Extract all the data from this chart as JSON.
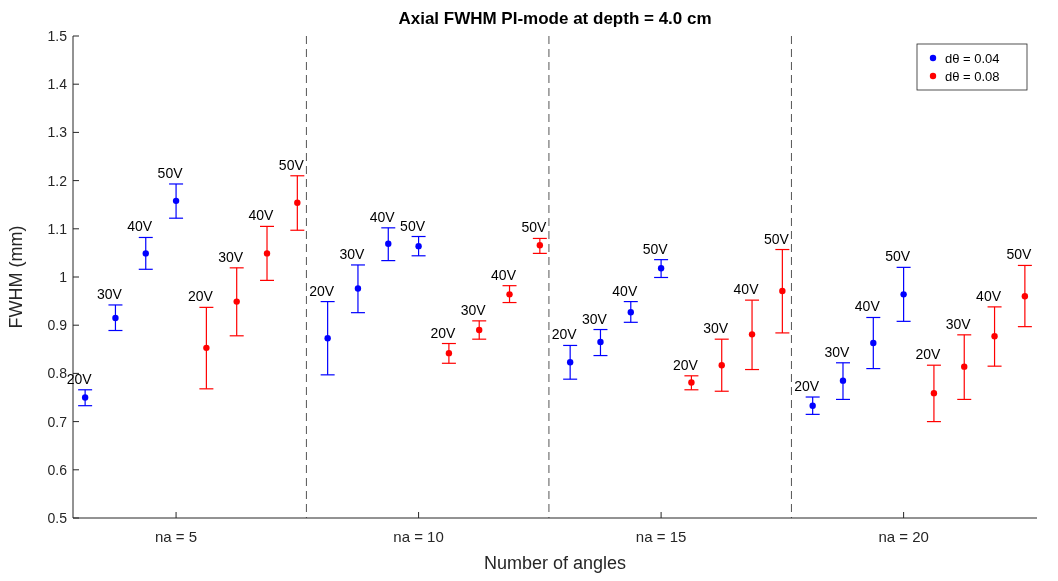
{
  "chart_data": {
    "type": "scatter",
    "title": "Axial FWHM PI-mode at depth = 4.0 cm",
    "xlabel": "Number of angles",
    "ylabel": "FWHM (mm)",
    "categories": [
      null,
      null,
      null,
      "na = 5",
      null,
      null,
      null,
      null,
      null,
      null,
      null,
      "na = 10",
      null,
      null,
      null,
      null,
      null,
      null,
      null,
      "na = 15",
      null,
      null,
      null,
      null,
      null,
      null,
      null,
      "na = 20",
      null,
      null,
      null,
      null
    ],
    "ylim": [
      0.5,
      1.5
    ],
    "yticks": [
      0.5,
      0.6,
      0.7,
      0.8,
      0.9,
      1,
      1.1,
      1.2,
      1.3,
      1.4,
      1.5
    ],
    "grid": false,
    "legend": "top right",
    "marker": "circle",
    "series": [
      {
        "name": "dθ = 0.04",
        "color": "#0000ff",
        "values": [
          0.75,
          0.915,
          1.049,
          1.158,
          null,
          null,
          null,
          null,
          0.873,
          0.976,
          1.069,
          1.064,
          null,
          null,
          null,
          null,
          0.823,
          0.865,
          0.927,
          1.018,
          null,
          null,
          null,
          null,
          0.733,
          0.785,
          0.863,
          0.964,
          null,
          null,
          null,
          null
        ],
        "errors": [
          [
            0.733,
            0.766
          ],
          [
            0.889,
            0.942
          ],
          [
            1.016,
            1.082
          ],
          [
            1.122,
            1.193
          ],
          null,
          null,
          null,
          null,
          [
            0.797,
            0.949
          ],
          [
            0.926,
            1.025
          ],
          [
            1.034,
            1.102
          ],
          [
            1.044,
            1.084
          ],
          null,
          null,
          null,
          null,
          [
            0.788,
            0.858
          ],
          [
            0.837,
            0.891
          ],
          [
            0.906,
            0.949
          ],
          [
            0.999,
            1.036
          ],
          null,
          null,
          null,
          null,
          [
            0.715,
            0.751
          ],
          [
            0.746,
            0.822
          ],
          [
            0.81,
            0.916
          ],
          [
            0.908,
            1.02
          ],
          null,
          null,
          null,
          null
        ]
      },
      {
        "name": "dθ = 0.08",
        "color": "#ff0000",
        "values": [
          null,
          null,
          null,
          null,
          0.853,
          0.949,
          1.049,
          1.154,
          null,
          null,
          null,
          null,
          0.842,
          0.89,
          0.964,
          1.066,
          null,
          null,
          null,
          null,
          0.781,
          0.817,
          0.881,
          0.971,
          null,
          null,
          null,
          null,
          0.759,
          0.814,
          0.877,
          0.96
        ],
        "errors": [
          null,
          null,
          null,
          null,
          [
            0.768,
            0.937
          ],
          [
            0.878,
            1.019
          ],
          [
            0.993,
            1.105
          ],
          [
            1.097,
            1.21
          ],
          null,
          null,
          null,
          null,
          [
            0.821,
            0.862
          ],
          [
            0.871,
            0.909
          ],
          [
            0.947,
            0.982
          ],
          [
            1.049,
            1.08
          ],
          null,
          null,
          null,
          null,
          [
            0.766,
            0.795
          ],
          [
            0.763,
            0.871
          ],
          [
            0.808,
            0.952
          ],
          [
            0.884,
            1.057
          ],
          null,
          null,
          null,
          null,
          [
            0.7,
            0.817
          ],
          [
            0.746,
            0.88
          ],
          [
            0.815,
            0.938
          ],
          [
            0.897,
            1.024
          ]
        ]
      }
    ],
    "annotations": [
      {
        "text": "20V",
        "y": 0.766
      },
      {
        "text": "30V",
        "y": 0.942
      },
      {
        "text": "40V",
        "y": 1.082
      },
      {
        "text": "50V",
        "y": 1.193
      },
      {
        "text": "20V",
        "y": 0.937
      },
      {
        "text": "30V",
        "y": 1.019
      },
      {
        "text": "40V",
        "y": 1.105
      },
      {
        "text": "50V",
        "y": 1.21
      },
      {
        "text": "20V",
        "y": 0.949
      },
      {
        "text": "30V",
        "y": 1.025
      },
      {
        "text": "40V",
        "y": 1.102
      },
      {
        "text": "50V",
        "y": 1.084
      },
      {
        "text": "20V",
        "y": 0.862
      },
      {
        "text": "30V",
        "y": 0.909
      },
      {
        "text": "40V",
        "y": 0.982
      },
      {
        "text": "50V",
        "y": 1.08
      },
      {
        "text": "20V",
        "y": 0.858
      },
      {
        "text": "30V",
        "y": 0.891
      },
      {
        "text": "40V",
        "y": 0.949
      },
      {
        "text": "50V",
        "y": 1.036
      },
      {
        "text": "20V",
        "y": 0.795
      },
      {
        "text": "30V",
        "y": 0.871
      },
      {
        "text": "40V",
        "y": 0.952
      },
      {
        "text": "50V",
        "y": 1.057
      },
      {
        "text": "20V",
        "y": 0.751
      },
      {
        "text": "30V",
        "y": 0.822
      },
      {
        "text": "40V",
        "y": 0.916
      },
      {
        "text": "50V",
        "y": 1.02
      },
      {
        "text": "20V",
        "y": 0.817
      },
      {
        "text": "30V",
        "y": 0.88
      },
      {
        "text": "40V",
        "y": 0.938
      },
      {
        "text": "50V",
        "y": 1.024
      }
    ]
  }
}
